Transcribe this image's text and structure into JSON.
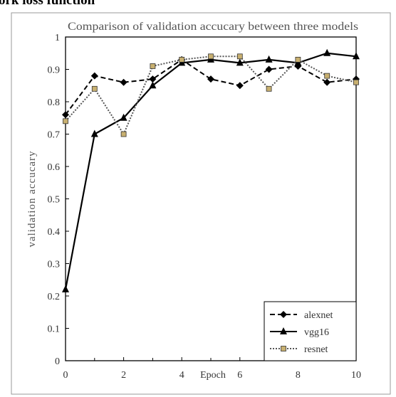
{
  "page_heading": "ork loss function",
  "chart_data": {
    "type": "line",
    "title": "Comparison of validation accucary between three models",
    "xlabel": "Epoch",
    "ylabel": "validation accucary",
    "x": [
      0,
      1,
      2,
      3,
      4,
      5,
      6,
      7,
      8,
      9,
      10
    ],
    "xticks": [
      "0",
      "2",
      "4",
      "6",
      "8",
      "10"
    ],
    "xtick_values": [
      0,
      2,
      4,
      6,
      8,
      10
    ],
    "yticks": [
      "0",
      "0.1",
      "0.2",
      "0.3",
      "0.4",
      "0.5",
      "0.6",
      "0.7",
      "0.8",
      "0.9",
      "1"
    ],
    "ytick_values": [
      0,
      0.1,
      0.2,
      0.3,
      0.4,
      0.5,
      0.6,
      0.7,
      0.8,
      0.9,
      1
    ],
    "xlim": [
      0,
      10
    ],
    "ylim": [
      0,
      1
    ],
    "grid": false,
    "legend_position": "bottom-right",
    "series": [
      {
        "name": "alexnet",
        "style": "dashed",
        "marker": "diamond",
        "color": "#000000",
        "values": [
          0.76,
          0.88,
          0.86,
          0.87,
          0.93,
          0.87,
          0.85,
          0.9,
          0.91,
          0.86,
          0.87
        ]
      },
      {
        "name": "vgg16",
        "style": "solid",
        "marker": "triangle",
        "color": "#000000",
        "values": [
          0.22,
          0.7,
          0.75,
          0.85,
          0.92,
          0.93,
          0.92,
          0.93,
          0.92,
          0.95,
          0.94
        ]
      },
      {
        "name": "resnet",
        "style": "dotted",
        "marker": "square",
        "color": "#555555",
        "marker_fill": "#c8b070",
        "values": [
          0.74,
          0.84,
          0.7,
          0.91,
          0.93,
          0.94,
          0.94,
          0.84,
          0.93,
          0.88,
          0.86
        ]
      }
    ]
  }
}
